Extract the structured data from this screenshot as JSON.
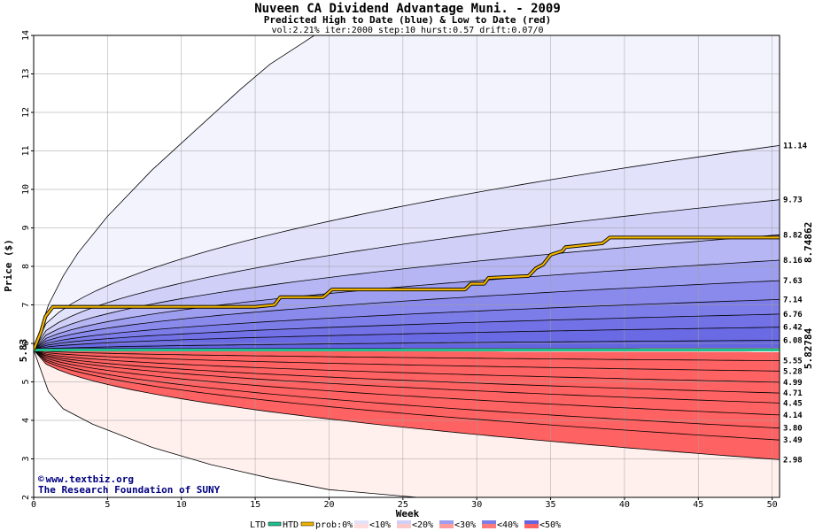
{
  "chart_data": {
    "type": "area",
    "title": "Nuveen CA Dividend Advantage Muni.  - 2009",
    "subtitle": "Predicted High to Date (blue) &  Low to Date (red)",
    "params": "vol:2.21% iter:2000 step:10 hurst:0.57 drift:0.07/0",
    "xlabel": "Week",
    "ylabel": "Price ($)",
    "xlim": [
      0,
      50.5
    ],
    "ylim": [
      2,
      14
    ],
    "x_ticks": [
      "0",
      "5",
      "10",
      "15",
      "20",
      "25",
      "30",
      "35",
      "40",
      "45",
      "50"
    ],
    "y_ticks": [
      "2",
      "3",
      "4",
      "5",
      "6",
      "7",
      "8",
      "9",
      "10",
      "11",
      "12",
      "13",
      "14"
    ],
    "start_price": "5.83",
    "high_to_date_label": "8.74862",
    "low_to_date_label": "5.82784",
    "outer_high": [
      [
        0,
        5.83
      ],
      [
        1,
        7.0
      ],
      [
        2,
        7.75
      ],
      [
        3,
        8.35
      ],
      [
        5,
        9.3
      ],
      [
        8,
        10.5
      ],
      [
        11,
        11.55
      ],
      [
        14,
        12.6
      ],
      [
        16,
        13.25
      ],
      [
        18,
        13.75
      ],
      [
        19,
        14.0
      ]
    ],
    "outer_low": [
      [
        0,
        5.83
      ],
      [
        1,
        4.75
      ],
      [
        2,
        4.3
      ],
      [
        4,
        3.9
      ],
      [
        8,
        3.3
      ],
      [
        12,
        2.85
      ],
      [
        16,
        2.5
      ],
      [
        20,
        2.2
      ],
      [
        26,
        2.0
      ]
    ],
    "high_bands": [
      {
        "label": "11.14",
        "end": 11.14
      },
      {
        "label": "9.73",
        "end": 9.73
      },
      {
        "label": "8.82",
        "end": 8.82
      },
      {
        "label": "8.16",
        "end": 8.16
      },
      {
        "label": "7.63",
        "end": 7.63
      },
      {
        "label": "7.14",
        "end": 7.14
      },
      {
        "label": "6.76",
        "end": 6.76
      },
      {
        "label": "6.42",
        "end": 6.42
      },
      {
        "label": "6.08",
        "end": 6.08
      }
    ],
    "low_bands": [
      {
        "label": "5.55",
        "end": 5.55
      },
      {
        "label": "5.28",
        "end": 5.28
      },
      {
        "label": "4.99",
        "end": 4.99
      },
      {
        "label": "4.71",
        "end": 4.71
      },
      {
        "label": "4.45",
        "end": 4.45
      },
      {
        "label": "4.14",
        "end": 4.14
      },
      {
        "label": "3.80",
        "end": 3.8
      },
      {
        "label": "3.49",
        "end": 3.49
      },
      {
        "label": "2.98",
        "end": 2.98
      }
    ],
    "band_fills": {
      "high": [
        "#f3f3fe",
        "#e2e2fb",
        "#cfcff8",
        "#b6b6f4",
        "#9e9ef0",
        "#8a8aec",
        "#7d7de9",
        "#7272e6",
        "#6a6ae4",
        "#6464e2"
      ],
      "low": [
        "#fff0ee",
        "#ffdcdc",
        "#ffc8c8",
        "#ffb2b2",
        "#ff9c9c",
        "#ff8888",
        "#ff7a7a",
        "#ff7070",
        "#ff6868",
        "#ff6262"
      ]
    },
    "htd_path": [
      [
        0,
        5.83
      ],
      [
        0.5,
        6.3
      ],
      [
        0.8,
        6.7
      ],
      [
        1.3,
        6.95
      ],
      [
        5,
        6.95
      ],
      [
        10,
        6.95
      ],
      [
        15,
        6.95
      ],
      [
        16.3,
        7.0
      ],
      [
        16.7,
        7.2
      ],
      [
        19.6,
        7.2
      ],
      [
        20.2,
        7.4
      ],
      [
        24,
        7.4
      ],
      [
        27,
        7.4
      ],
      [
        29.2,
        7.4
      ],
      [
        29.6,
        7.55
      ],
      [
        30.5,
        7.55
      ],
      [
        30.8,
        7.7
      ],
      [
        33.5,
        7.75
      ],
      [
        34,
        7.95
      ],
      [
        34.5,
        8.05
      ],
      [
        35,
        8.3
      ],
      [
        35.8,
        8.4
      ],
      [
        36,
        8.5
      ],
      [
        38.5,
        8.6
      ],
      [
        39,
        8.75
      ],
      [
        45,
        8.75
      ],
      [
        50.5,
        8.75
      ]
    ],
    "ltd_value": 5.82784,
    "ltd_color": "#20c090",
    "htd_color": "#f0b400",
    "legend": {
      "ltd": "LTD",
      "htd": "HTD",
      "prob0": "prob:0%",
      "lt10": "<10%",
      "lt20": "<20%",
      "lt30": "<30%",
      "lt40": "<40%",
      "lt50": "<50%"
    },
    "credit_line1": "www.textbiz.org",
    "credit_line2": "The Research Foundation of SUNY",
    "grid": true
  }
}
